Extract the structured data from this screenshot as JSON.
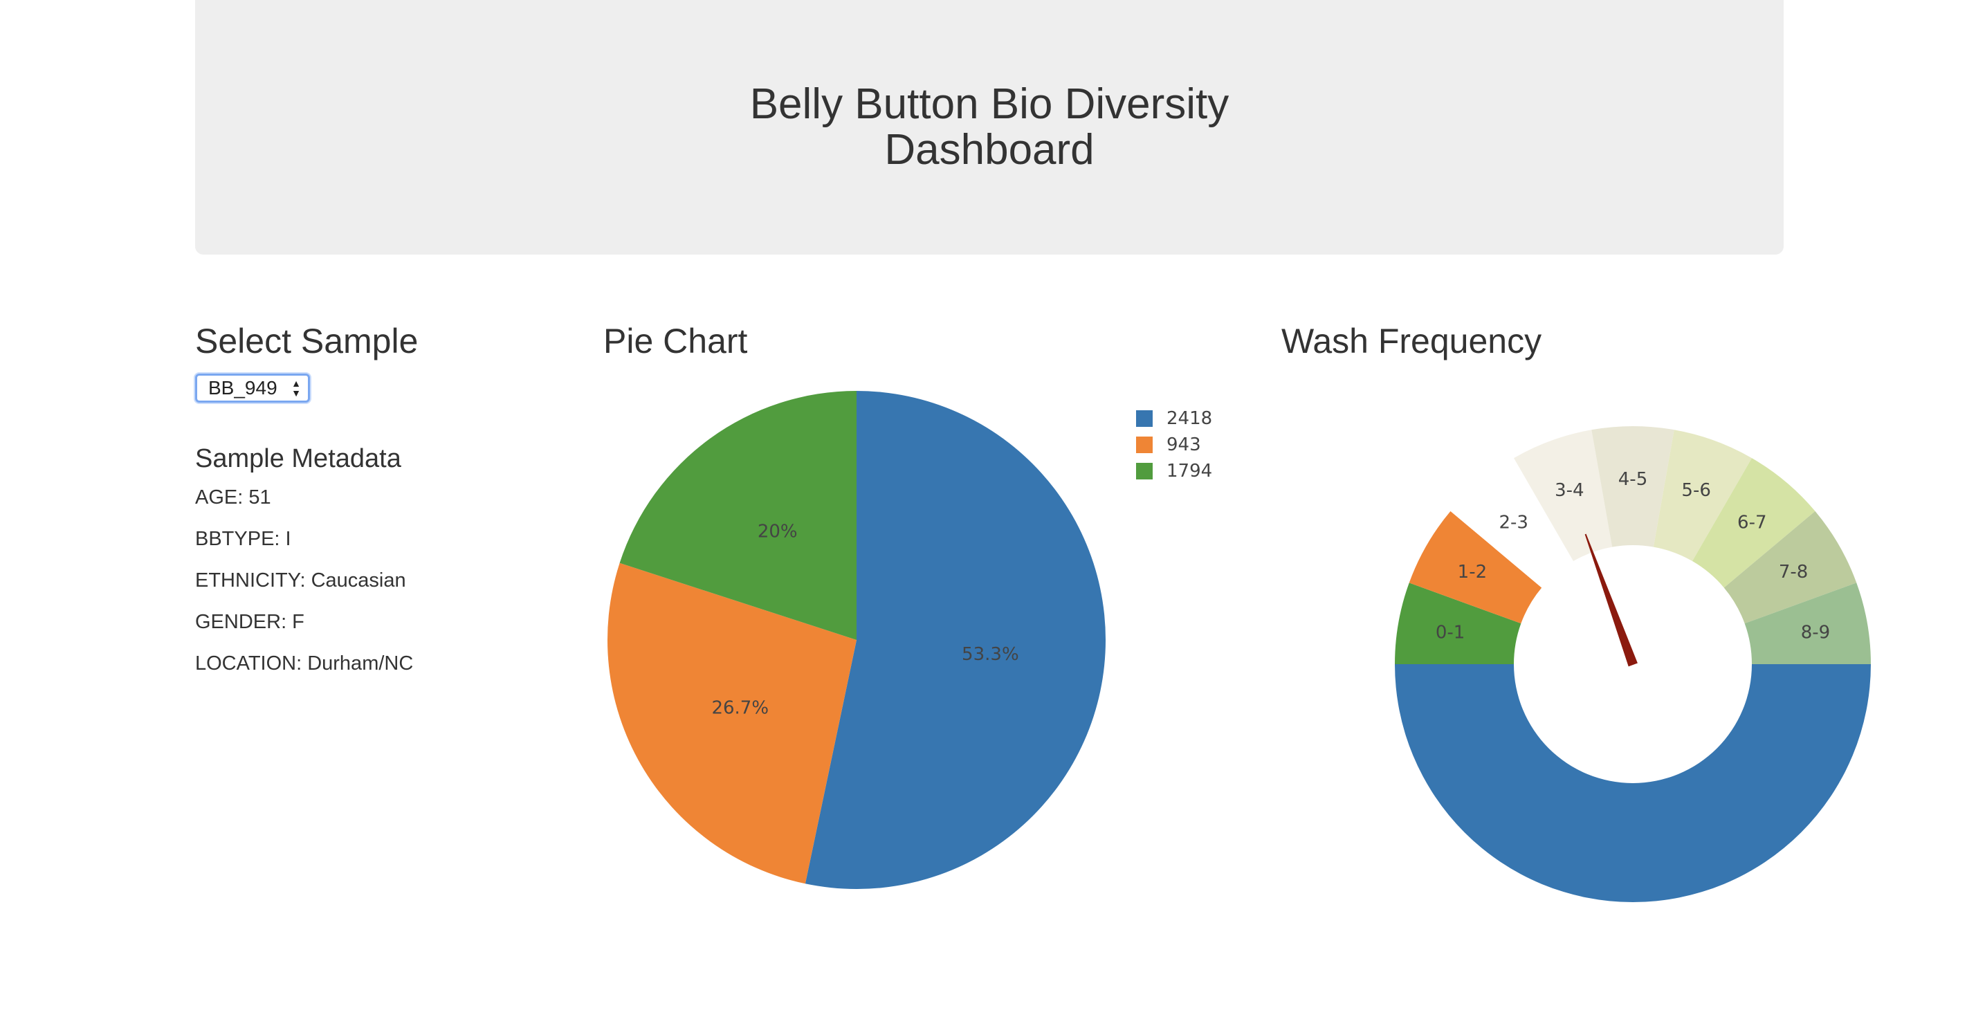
{
  "header": {
    "title_line1": "Belly Button Bio Diversity",
    "title_line2": "Dashboard"
  },
  "select_panel": {
    "heading": "Select Sample",
    "selected_sample": "BB_949"
  },
  "metadata": {
    "heading": "Sample Metadata",
    "items": [
      "AGE: 51",
      "BBTYPE: I",
      "ETHNICITY: Caucasian",
      "GENDER: F",
      "LOCATION: Durham/NC"
    ]
  },
  "pie_panel": {
    "heading": "Pie Chart"
  },
  "gauge_panel": {
    "heading": "Wash Frequency"
  },
  "chart_data": [
    {
      "type": "pie",
      "labels": [
        "2418",
        "943",
        "1794"
      ],
      "values": [
        53.3,
        26.7,
        20
      ],
      "text_labels": [
        "53.3%",
        "26.7%",
        "20%"
      ],
      "colors": [
        "#3776b0",
        "#ef8535",
        "#519c3e"
      ],
      "legend_placement": "top-right"
    },
    {
      "type": "pie",
      "categories": [
        "0-1",
        "1-2",
        "2-3",
        "3-4",
        "4-5",
        "5-6",
        "6-7",
        "7-8",
        "8-9"
      ],
      "colors": [
        "#519c3e",
        "#ef8535",
        "#ffffff",
        "#f3f0e6",
        "#e8e6d4",
        "#e5e8c2",
        "#d5e3a5",
        "#bccb9d",
        "#9bbf92"
      ],
      "bottom_color": "#3776b0",
      "hole": 0.5,
      "needle_color": "#8b1a0e",
      "needle_value": 3.5
    }
  ]
}
